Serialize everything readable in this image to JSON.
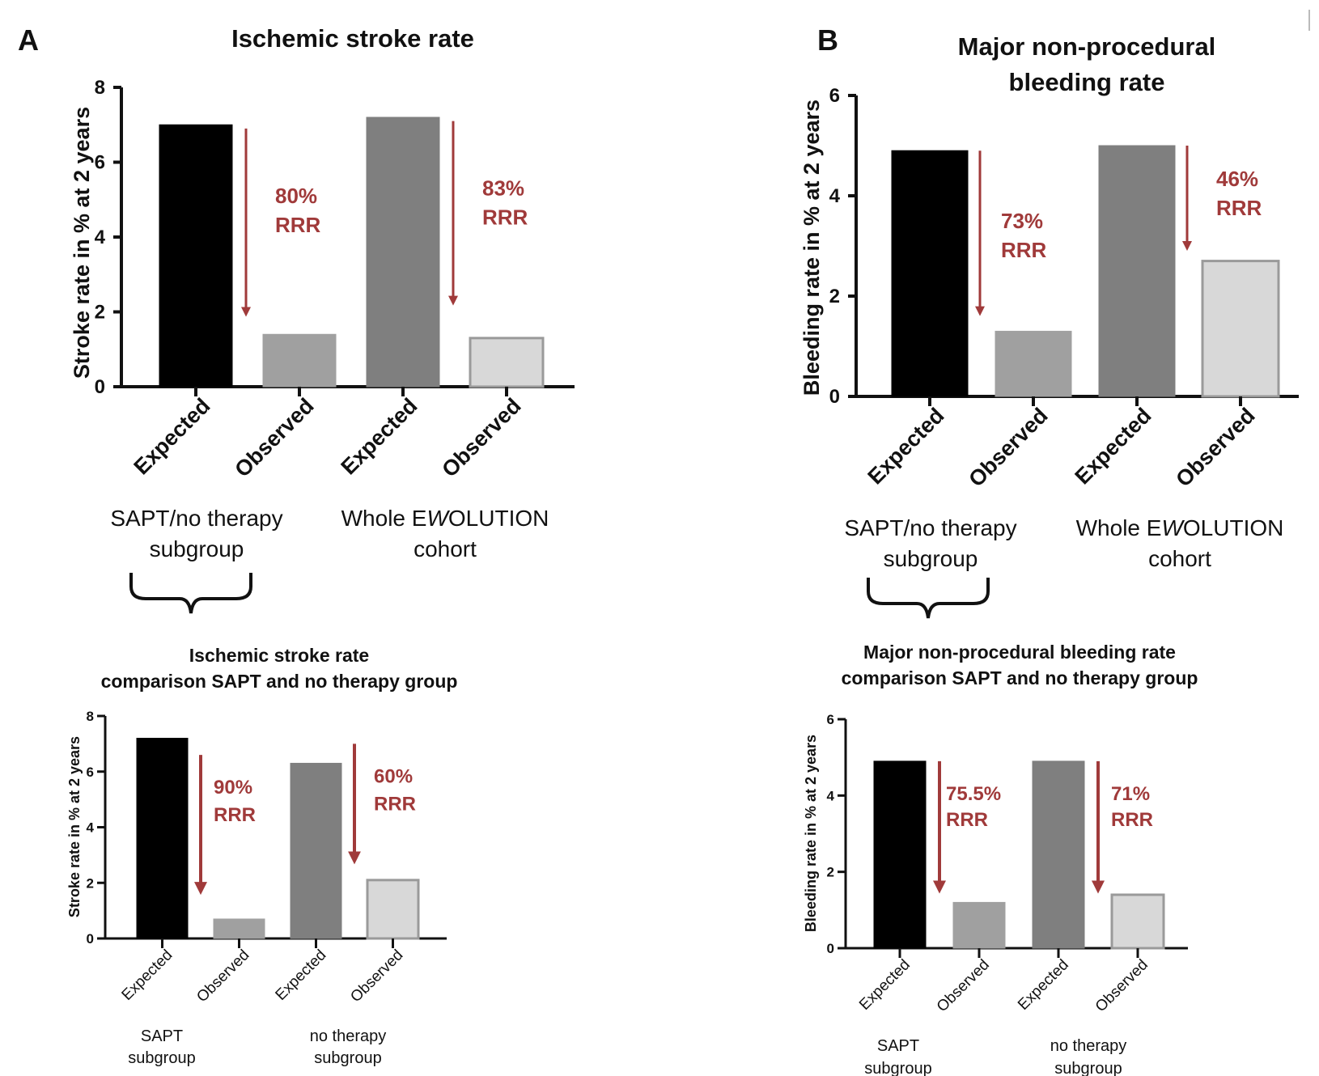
{
  "panels": {
    "a": {
      "letter": "A"
    },
    "b": {
      "letter": "B"
    }
  },
  "chart_data": [
    {
      "id": "a_top",
      "type": "bar",
      "title": [
        "Ischemic stroke rate"
      ],
      "ylabel": "Stroke rate  in % at 2 years",
      "ylim": [
        0,
        8
      ],
      "yticks": [
        0,
        2,
        4,
        6,
        8
      ],
      "categories": [
        "Expected",
        "Observed",
        "Expected",
        "Observed"
      ],
      "values": [
        7.0,
        1.4,
        7.2,
        1.3
      ],
      "bar_colors": [
        "#000000",
        "#a0a0a0",
        "#7f7f7f",
        "#d8d8d8"
      ],
      "group_labels": [
        [
          "SAPT/no therapy",
          "subgroup"
        ],
        [
          "Whole E",
          "W",
          "OLUTION",
          "cohort"
        ]
      ],
      "annotations": [
        {
          "text": [
            "80%",
            "RRR"
          ],
          "from_value": 6.9,
          "to_value": 2.0,
          "between": 1
        },
        {
          "text": [
            "83%",
            "RRR"
          ],
          "from_value": 7.1,
          "to_value": 2.3,
          "between": 3
        }
      ]
    },
    {
      "id": "a_bottom",
      "type": "bar",
      "title": [
        "Ischemic stroke rate",
        "comparison SAPT and no therapy group"
      ],
      "ylabel": "Stroke rate  in % at 2 years",
      "ylim": [
        0,
        8
      ],
      "yticks": [
        0,
        2,
        4,
        6,
        8
      ],
      "categories": [
        "Expected",
        "Observed",
        "Expected",
        "Observed"
      ],
      "values": [
        7.2,
        0.7,
        6.3,
        2.1
      ],
      "bar_colors": [
        "#000000",
        "#a0a0a0",
        "#7f7f7f",
        "#d8d8d8"
      ],
      "group_labels": [
        [
          "SAPT",
          "subgroup"
        ],
        [
          "no therapy",
          "subgroup"
        ]
      ],
      "annotations": [
        {
          "text": [
            "90%",
            "RRR"
          ],
          "from_value": 6.6,
          "to_value": 1.8,
          "between": 1
        },
        {
          "text": [
            "60%",
            "RRR"
          ],
          "from_value": 7.0,
          "to_value": 2.9,
          "between": 3
        }
      ]
    },
    {
      "id": "b_top",
      "type": "bar",
      "title": [
        "Major non-procedural",
        "bleeding rate"
      ],
      "ylabel": "Bleeding rate  in % at 2 years",
      "ylim": [
        0,
        6
      ],
      "yticks": [
        0,
        2,
        4,
        6
      ],
      "categories": [
        "Expected",
        "Observed",
        "Expected",
        "Observed"
      ],
      "values": [
        4.9,
        1.3,
        5.0,
        2.7
      ],
      "bar_colors": [
        "#000000",
        "#a0a0a0",
        "#7f7f7f",
        "#d8d8d8"
      ],
      "group_labels": [
        [
          "SAPT/no therapy",
          "subgroup"
        ],
        [
          "Whole E",
          "W",
          "OLUTION",
          "cohort"
        ]
      ],
      "annotations": [
        {
          "text": [
            "73%",
            "RRR"
          ],
          "from_value": 4.9,
          "to_value": 1.7,
          "between": 1
        },
        {
          "text": [
            "46%",
            "RRR"
          ],
          "from_value": 5.0,
          "to_value": 3.0,
          "between": 3
        }
      ]
    },
    {
      "id": "b_bottom",
      "type": "bar",
      "title": [
        "Major non-procedural bleeding rate",
        "comparison SAPT and no therapy group"
      ],
      "ylabel": "Bleeding rate  in % at 2 years",
      "ylim": [
        0,
        6
      ],
      "yticks": [
        0,
        2,
        4,
        6
      ],
      "categories": [
        "Expected",
        "Observed",
        "Expected",
        "Observed"
      ],
      "values": [
        4.9,
        1.2,
        4.9,
        1.4
      ],
      "bar_colors": [
        "#000000",
        "#a0a0a0",
        "#7f7f7f",
        "#d8d8d8"
      ],
      "group_labels": [
        [
          "SAPT",
          "subgroup"
        ],
        [
          "no therapy",
          "subgroup"
        ]
      ],
      "annotations": [
        {
          "text": [
            "75.5%",
            "RRR"
          ],
          "from_value": 4.9,
          "to_value": 1.6,
          "between": 1
        },
        {
          "text": [
            "71%",
            "RRR"
          ],
          "from_value": 4.9,
          "to_value": 1.6,
          "between": 3
        }
      ]
    }
  ]
}
